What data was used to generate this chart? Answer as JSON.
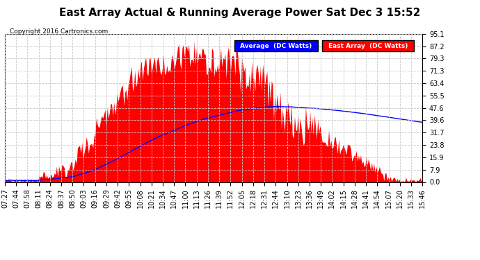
{
  "title": "East Array Actual & Running Average Power Sat Dec 3 15:52",
  "copyright": "Copyright 2016 Cartronics.com",
  "ylabel_right": [
    "95.1",
    "87.2",
    "79.3",
    "71.3",
    "63.4",
    "55.5",
    "47.6",
    "39.6",
    "31.7",
    "23.8",
    "15.9",
    "7.9",
    "0.0"
  ],
  "yticks": [
    95.1,
    87.2,
    79.3,
    71.3,
    63.4,
    55.5,
    47.6,
    39.6,
    31.7,
    23.8,
    15.9,
    7.9,
    0.0
  ],
  "ymax": 95.1,
  "ymin": 0.0,
  "fill_color": "#FF0000",
  "avg_line_color": "#0000FF",
  "legend_avg_bg": "#0000FF",
  "legend_east_bg": "#FF0000",
  "legend_avg_text": "Average  (DC Watts)",
  "legend_east_text": "East Array  (DC Watts)",
  "background_color": "#FFFFFF",
  "grid_color": "#C8C8C8",
  "title_fontsize": 11,
  "tick_fontsize": 7,
  "xticks": [
    "07:27",
    "07:44",
    "07:58",
    "08:11",
    "08:24",
    "08:37",
    "08:50",
    "09:03",
    "09:16",
    "09:29",
    "09:42",
    "09:55",
    "10:08",
    "10:21",
    "10:34",
    "10:47",
    "11:00",
    "11:13",
    "11:26",
    "11:39",
    "11:52",
    "12:05",
    "12:18",
    "12:31",
    "12:44",
    "13:10",
    "13:23",
    "13:36",
    "13:49",
    "14:02",
    "14:15",
    "14:28",
    "14:41",
    "14:54",
    "15:07",
    "15:20",
    "15:33",
    "15:46"
  ]
}
